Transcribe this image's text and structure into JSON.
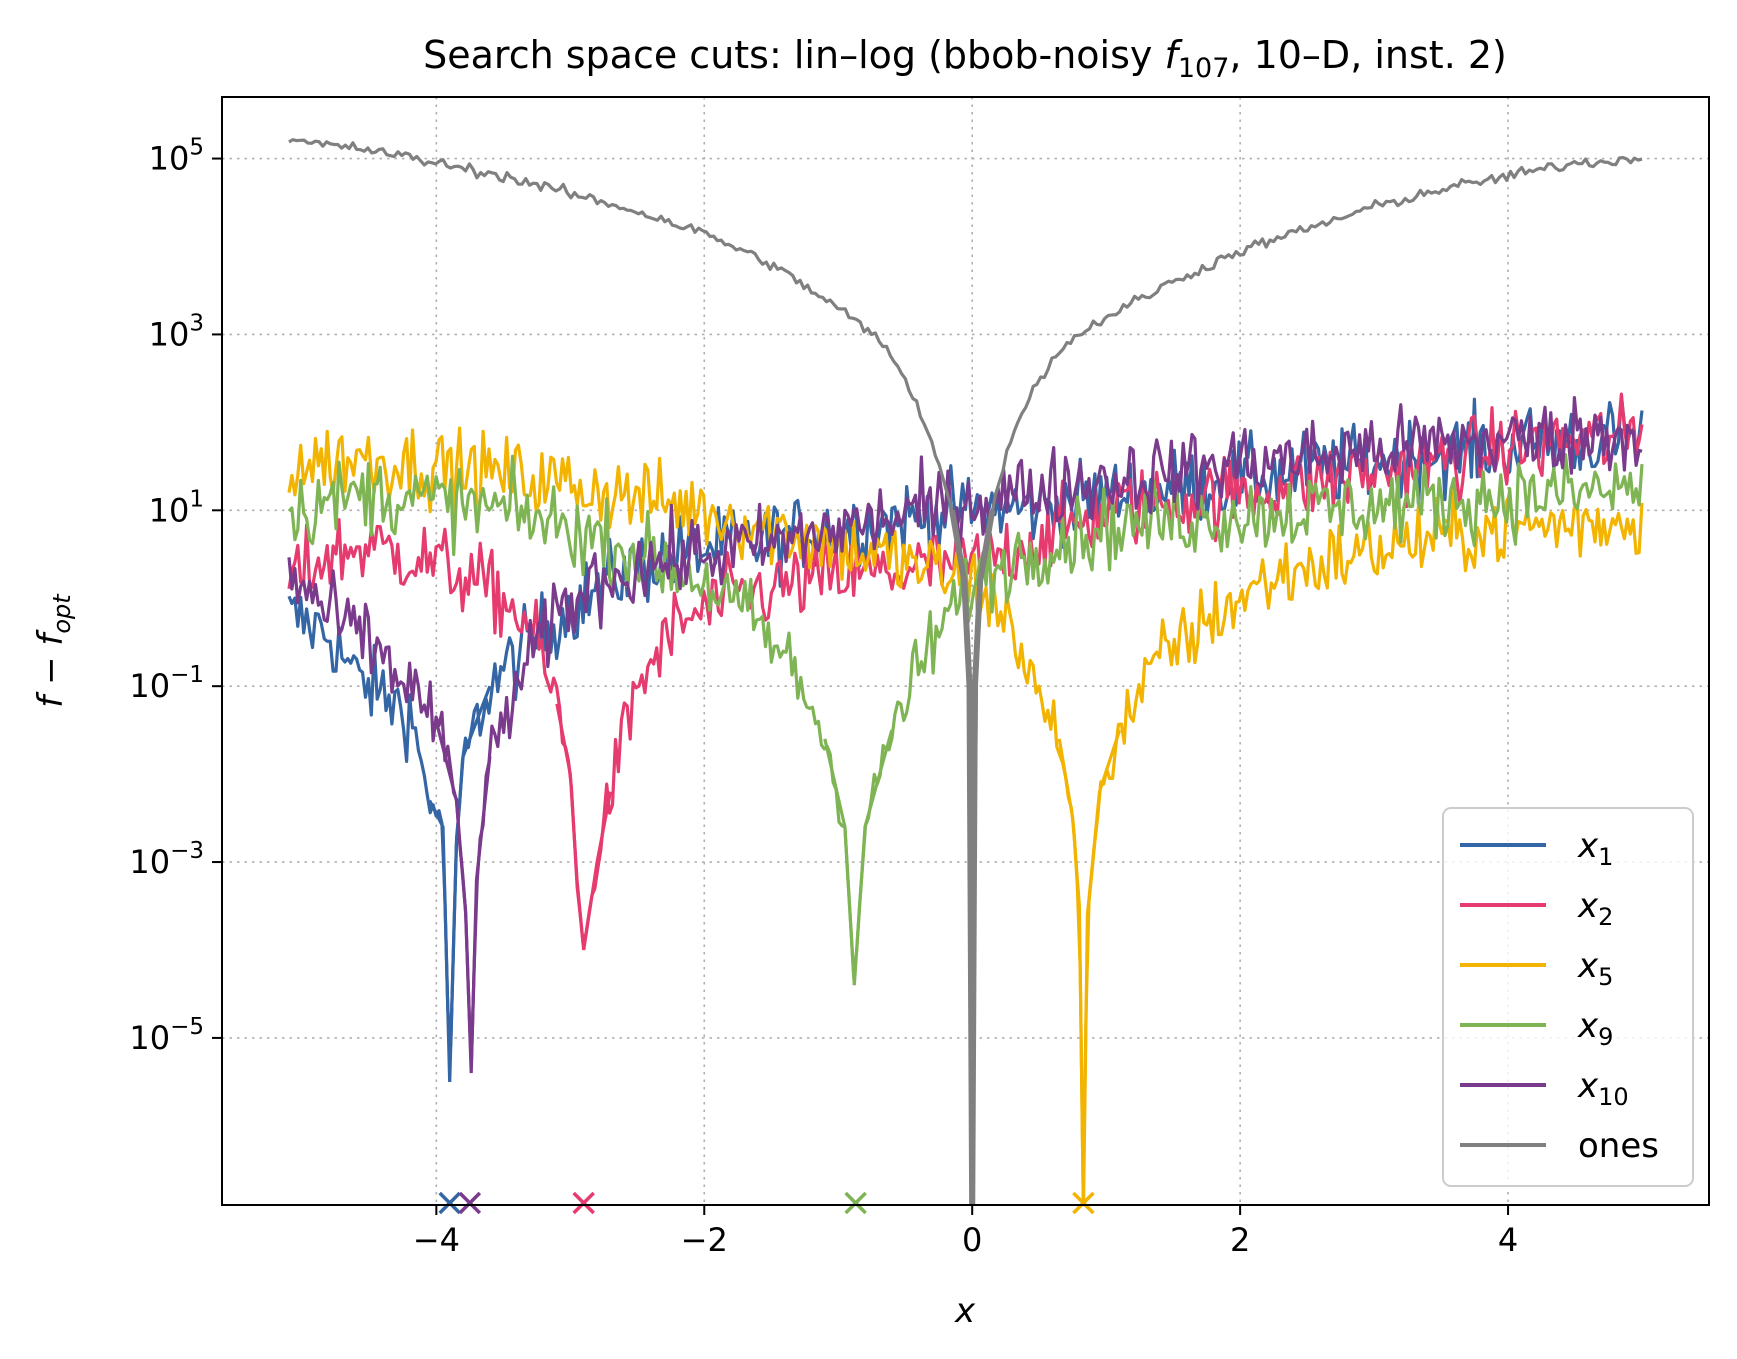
{
  "chart_data": {
    "type": "line",
    "title_main": "Search space cuts: lin–log (bbob-noisy ",
    "title_f": "f",
    "title_fsub": "107",
    "title_tail": ", 10–D, inst. 2)",
    "xlabel": "x",
    "ylabel_f": "f",
    "ylabel_minus": " − ",
    "ylabel_fopt": "f",
    "ylabel_sub": "opt",
    "x_scale": "linear",
    "y_scale": "log",
    "xlim": [
      -5.6,
      5.5
    ],
    "ylim_log10": [
      -6.9,
      5.7
    ],
    "xticks": [
      -4,
      -2,
      0,
      2,
      4
    ],
    "xtick_labels": [
      "−4",
      "−2",
      "0",
      "2",
      "4"
    ],
    "yticks_exp": [
      5,
      3,
      1,
      -1,
      -3,
      -5
    ],
    "ytick_labels": [
      {
        "base": "10",
        "exp": "5"
      },
      {
        "base": "10",
        "exp": "3"
      },
      {
        "base": "10",
        "exp": "1"
      },
      {
        "base": "10",
        "exp": "−1"
      },
      {
        "base": "10",
        "exp": "−3"
      },
      {
        "base": "10",
        "exp": "−5"
      }
    ],
    "grid": true,
    "legend_location": "lower right",
    "series": [
      {
        "name": "x",
        "sub": "1",
        "color": "#3465a4",
        "optimum_x": -3.9,
        "profile": [
          [
            -5.1,
            -0.2
          ],
          [
            -4.8,
            -0.4
          ],
          [
            -4.6,
            -0.9
          ],
          [
            -4.4,
            -1.1
          ],
          [
            -4.2,
            -1.3
          ],
          [
            -4.05,
            -2.3
          ],
          [
            -3.95,
            -2.6
          ],
          [
            -3.9,
            -5.5
          ],
          [
            -3.85,
            -2.8
          ],
          [
            -3.8,
            -1.8
          ],
          [
            -3.6,
            -1.0
          ],
          [
            -3.3,
            -0.5
          ],
          [
            -3.0,
            -0.1
          ],
          [
            -2.6,
            0.3
          ],
          [
            -2.2,
            0.5
          ],
          [
            -1.8,
            0.6
          ],
          [
            -1.4,
            0.7
          ],
          [
            -1.0,
            0.8
          ],
          [
            -0.5,
            0.9
          ],
          [
            0.0,
            1.0
          ],
          [
            0.5,
            1.05
          ],
          [
            1.0,
            1.15
          ],
          [
            1.5,
            1.25
          ],
          [
            2.0,
            1.35
          ],
          [
            2.5,
            1.45
          ],
          [
            3.0,
            1.55
          ],
          [
            3.5,
            1.65
          ],
          [
            4.0,
            1.75
          ],
          [
            4.5,
            1.8
          ],
          [
            5.0,
            1.85
          ]
        ]
      },
      {
        "name": "x",
        "sub": "2",
        "color": "#e63b6e",
        "optimum_x": -2.9,
        "profile": [
          [
            -5.1,
            0.2
          ],
          [
            -4.8,
            0.5
          ],
          [
            -4.5,
            0.6
          ],
          [
            -4.0,
            0.4
          ],
          [
            -3.6,
            0.1
          ],
          [
            -3.3,
            -0.3
          ],
          [
            -3.1,
            -1.2
          ],
          [
            -3.0,
            -2.0
          ],
          [
            -2.95,
            -3.2
          ],
          [
            -2.9,
            -4.0
          ],
          [
            -2.8,
            -3.0
          ],
          [
            -2.7,
            -2.2
          ],
          [
            -2.5,
            -1.0
          ],
          [
            -2.2,
            -0.3
          ],
          [
            -1.8,
            0.0
          ],
          [
            -1.2,
            0.2
          ],
          [
            -0.6,
            0.3
          ],
          [
            0.0,
            0.4
          ],
          [
            0.4,
            0.6
          ],
          [
            1.0,
            1.0
          ],
          [
            1.5,
            1.1
          ],
          [
            2.0,
            1.2
          ],
          [
            2.5,
            1.3
          ],
          [
            3.0,
            1.45
          ],
          [
            3.5,
            1.55
          ],
          [
            4.0,
            1.7
          ],
          [
            4.5,
            1.8
          ],
          [
            5.0,
            1.85
          ]
        ]
      },
      {
        "name": "x",
        "sub": "5",
        "color": "#f2b400",
        "optimum_x": 0.83,
        "profile": [
          [
            -5.1,
            1.5
          ],
          [
            -4.6,
            1.6
          ],
          [
            -4.0,
            1.5
          ],
          [
            -3.5,
            1.4
          ],
          [
            -3.0,
            1.3
          ],
          [
            -2.5,
            1.15
          ],
          [
            -2.0,
            1.0
          ],
          [
            -1.5,
            0.8
          ],
          [
            -1.0,
            0.6
          ],
          [
            -0.5,
            0.4
          ],
          [
            0.0,
            0.2
          ],
          [
            0.3,
            -0.3
          ],
          [
            0.5,
            -1.2
          ],
          [
            0.65,
            -1.6
          ],
          [
            0.75,
            -2.5
          ],
          [
            0.8,
            -3.5
          ],
          [
            0.83,
            -7.0
          ],
          [
            0.86,
            -3.6
          ],
          [
            0.95,
            -2.2
          ],
          [
            1.1,
            -1.5
          ],
          [
            1.4,
            -0.7
          ],
          [
            1.8,
            -0.2
          ],
          [
            2.2,
            0.2
          ],
          [
            2.6,
            0.4
          ],
          [
            3.0,
            0.55
          ],
          [
            3.5,
            0.7
          ],
          [
            4.0,
            0.8
          ],
          [
            4.5,
            0.85
          ],
          [
            5.0,
            0.9
          ]
        ]
      },
      {
        "name": "x",
        "sub": "9",
        "color": "#7fb455",
        "optimum_x": -0.87,
        "profile": [
          [
            -5.1,
            1.0
          ],
          [
            -4.5,
            1.2
          ],
          [
            -4.0,
            1.1
          ],
          [
            -3.5,
            1.0
          ],
          [
            -3.0,
            0.8
          ],
          [
            -2.5,
            0.5
          ],
          [
            -2.0,
            0.2
          ],
          [
            -1.6,
            -0.3
          ],
          [
            -1.3,
            -0.9
          ],
          [
            -1.1,
            -1.6
          ],
          [
            -0.95,
            -2.6
          ],
          [
            -0.88,
            -4.4
          ],
          [
            -0.8,
            -2.6
          ],
          [
            -0.6,
            -1.5
          ],
          [
            -0.3,
            -0.5
          ],
          [
            0.0,
            0.2
          ],
          [
            0.5,
            0.6
          ],
          [
            1.0,
            0.8
          ],
          [
            1.5,
            0.9
          ],
          [
            2.0,
            0.95
          ],
          [
            2.5,
            1.0
          ],
          [
            3.0,
            1.05
          ],
          [
            3.5,
            1.1
          ],
          [
            4.0,
            1.15
          ],
          [
            4.5,
            1.2
          ],
          [
            5.0,
            1.25
          ]
        ]
      },
      {
        "name": "x",
        "sub": "10",
        "color": "#7b3b8c",
        "optimum_x": -3.75,
        "profile": [
          [
            -5.1,
            0.3
          ],
          [
            -4.8,
            -0.2
          ],
          [
            -4.5,
            -0.5
          ],
          [
            -4.2,
            -1.0
          ],
          [
            -4.0,
            -1.4
          ],
          [
            -3.85,
            -2.3
          ],
          [
            -3.78,
            -3.6
          ],
          [
            -3.74,
            -5.4
          ],
          [
            -3.7,
            -3.2
          ],
          [
            -3.6,
            -1.8
          ],
          [
            -3.4,
            -1.0
          ],
          [
            -3.1,
            -0.2
          ],
          [
            -2.8,
            0.2
          ],
          [
            -2.4,
            0.4
          ],
          [
            -2.0,
            0.5
          ],
          [
            -1.5,
            0.6
          ],
          [
            -1.0,
            0.8
          ],
          [
            -0.5,
            0.95
          ],
          [
            0.0,
            1.1
          ],
          [
            0.5,
            1.25
          ],
          [
            1.0,
            1.35
          ],
          [
            1.5,
            1.45
          ],
          [
            2.0,
            1.55
          ],
          [
            2.5,
            1.6
          ],
          [
            3.0,
            1.7
          ],
          [
            3.5,
            1.75
          ],
          [
            4.0,
            1.8
          ],
          [
            4.5,
            1.85
          ],
          [
            5.0,
            1.9
          ]
        ]
      },
      {
        "name": "ones",
        "sub": "",
        "color": "#808080",
        "optimum_x": 0.0,
        "profile": [
          [
            -5.1,
            5.2
          ],
          [
            -4.5,
            5.1
          ],
          [
            -4.0,
            4.95
          ],
          [
            -3.5,
            4.8
          ],
          [
            -3.0,
            4.6
          ],
          [
            -2.5,
            4.4
          ],
          [
            -2.0,
            4.15
          ],
          [
            -1.5,
            3.8
          ],
          [
            -1.0,
            3.3
          ],
          [
            -0.7,
            2.95
          ],
          [
            -0.5,
            2.5
          ],
          [
            -0.3,
            1.8
          ],
          [
            -0.15,
            1.0
          ],
          [
            -0.06,
            0.2
          ],
          [
            -0.02,
            -1.0
          ],
          [
            0.0,
            -7.0
          ],
          [
            0.02,
            -1.0
          ],
          [
            0.06,
            0.2
          ],
          [
            0.15,
            1.0
          ],
          [
            0.3,
            1.9
          ],
          [
            0.5,
            2.5
          ],
          [
            0.7,
            2.9
          ],
          [
            1.0,
            3.2
          ],
          [
            1.5,
            3.6
          ],
          [
            2.0,
            3.95
          ],
          [
            2.5,
            4.2
          ],
          [
            3.0,
            4.45
          ],
          [
            3.5,
            4.65
          ],
          [
            4.0,
            4.8
          ],
          [
            4.5,
            4.95
          ],
          [
            5.0,
            5.0
          ]
        ]
      }
    ]
  }
}
